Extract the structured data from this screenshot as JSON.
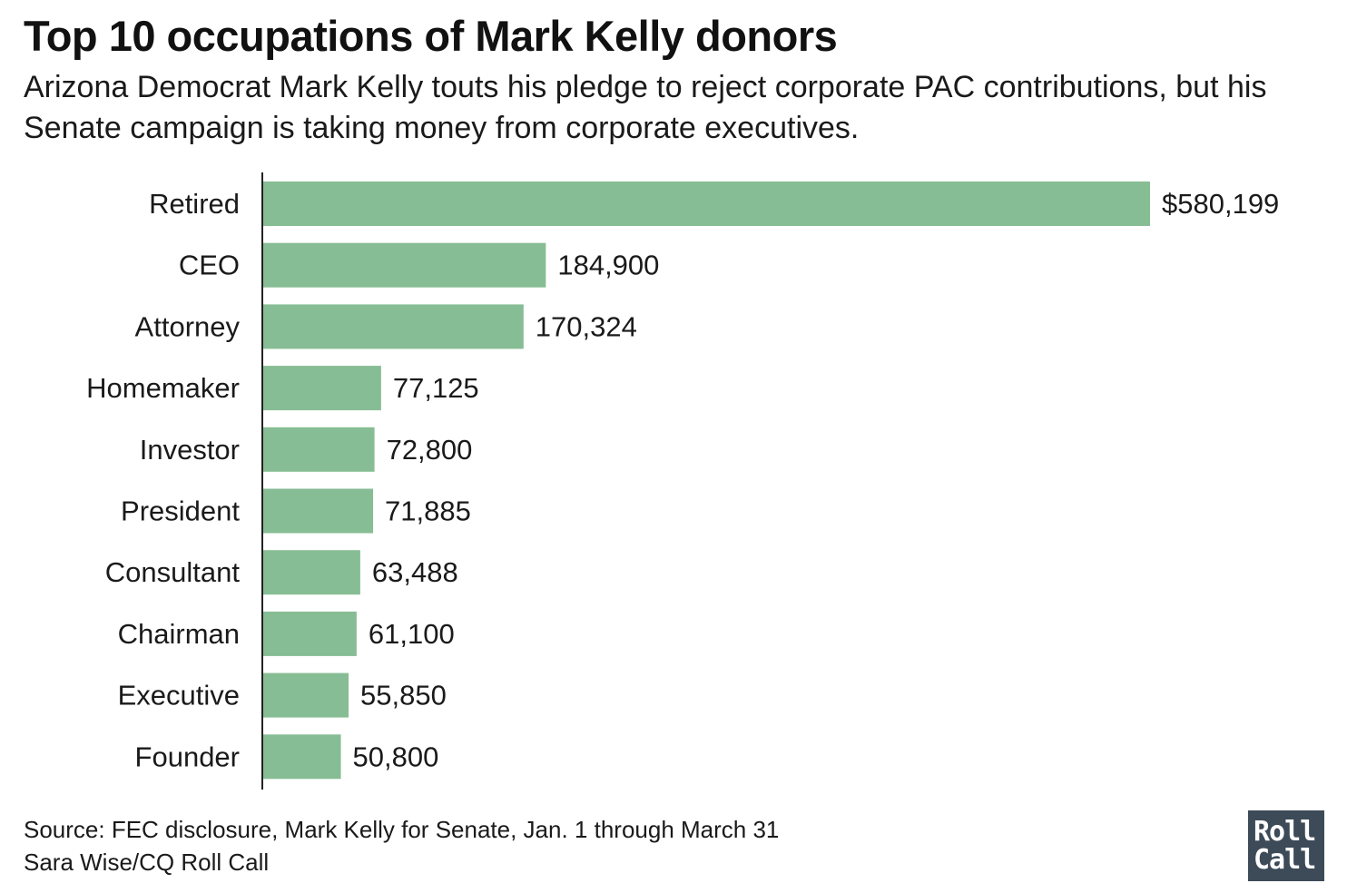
{
  "header": {
    "title": "Top 10 occupations of Mark Kelly donors",
    "subtitle": "Arizona Democrat Mark Kelly touts his pledge to reject corporate PAC contributions, but his Senate campaign is taking money from corporate executives."
  },
  "footer": {
    "source": "Source: FEC disclosure, Mark Kelly for Senate, Jan. 1 through March 31",
    "credit": "Sara Wise/CQ Roll Call"
  },
  "logo": {
    "line1": "Roll",
    "line2": "Call",
    "bg_color": "#3d4a57"
  },
  "chart_data": {
    "type": "bar",
    "orientation": "horizontal",
    "categories": [
      "Retired",
      "CEO",
      "Attorney",
      "Homemaker",
      "Investor",
      "President",
      "Consultant",
      "Chairman",
      "Executive",
      "Founder"
    ],
    "values": [
      580199,
      184900,
      170324,
      77125,
      72800,
      71885,
      63488,
      61100,
      55850,
      50800
    ],
    "value_labels": [
      "$580,199",
      "184,900",
      "170,324",
      "77,125",
      "72,800",
      "71,885",
      "63,488",
      "61,100",
      "55,850",
      "50,800"
    ],
    "title": "Top 10 occupations of Mark Kelly donors",
    "xlabel": "",
    "ylabel": "",
    "xlim": [
      0,
      580199
    ],
    "grid": false,
    "legend": "none",
    "bar_color": "#87bd94",
    "axis_color": "#222222"
  }
}
